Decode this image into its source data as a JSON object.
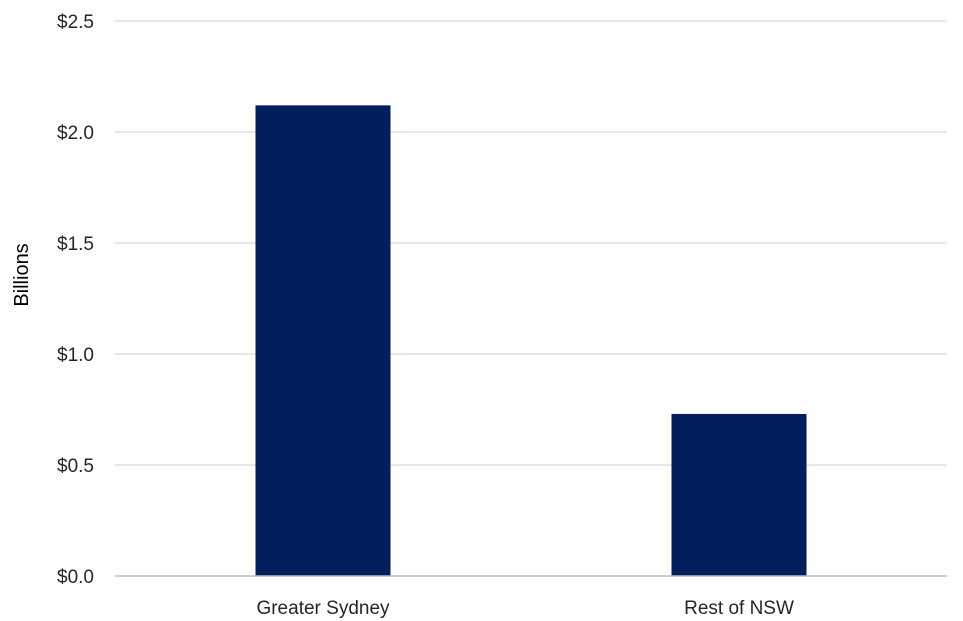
{
  "chart_data": {
    "type": "bar",
    "categories": [
      "Greater Sydney",
      "Rest of NSW"
    ],
    "series": [
      {
        "values": [
          2.12,
          0.73
        ],
        "color": "#001f5c"
      }
    ],
    "ylabel": "Billions",
    "xlabel": "",
    "ylim": [
      0,
      2.5
    ],
    "y_ticks": [
      0,
      0.5,
      1.0,
      1.5,
      2.0,
      2.5
    ],
    "y_tick_labels": [
      "$0.0",
      "$0.5",
      "$1.0",
      "$1.5",
      "$2.0",
      "$2.5"
    ],
    "grid": true,
    "gridline_color": "#d9d9d9",
    "axis_line_color": "#bfbfbf",
    "legend": "none"
  }
}
